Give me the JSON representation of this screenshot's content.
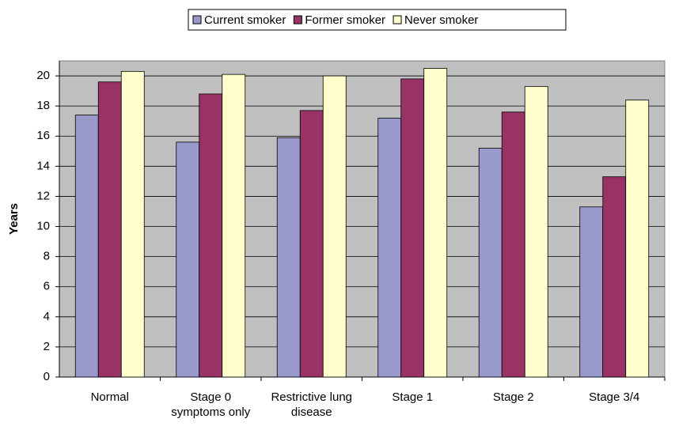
{
  "chart_data": {
    "type": "bar",
    "y_label": "Years",
    "categories": [
      "Normal",
      "Stage 0 symptoms only",
      "Restrictive lung disease",
      "Stage 1",
      "Stage 2",
      "Stage 3/4"
    ],
    "series": [
      {
        "name": "Current smoker",
        "color": "#9999cc",
        "values": [
          17.4,
          15.6,
          15.9,
          17.2,
          15.2,
          11.3
        ]
      },
      {
        "name": "Former smoker",
        "color": "#993366",
        "values": [
          19.6,
          18.8,
          17.7,
          19.8,
          17.6,
          13.3
        ]
      },
      {
        "name": "Never smoker",
        "color": "#ffffcc",
        "values": [
          20.3,
          20.1,
          20.0,
          20.5,
          19.3,
          18.4
        ]
      }
    ],
    "ylim": [
      0,
      21
    ],
    "yticks": [
      0,
      2,
      4,
      6,
      8,
      10,
      12,
      14,
      16,
      18,
      20
    ],
    "grid": true,
    "legend": "top"
  }
}
